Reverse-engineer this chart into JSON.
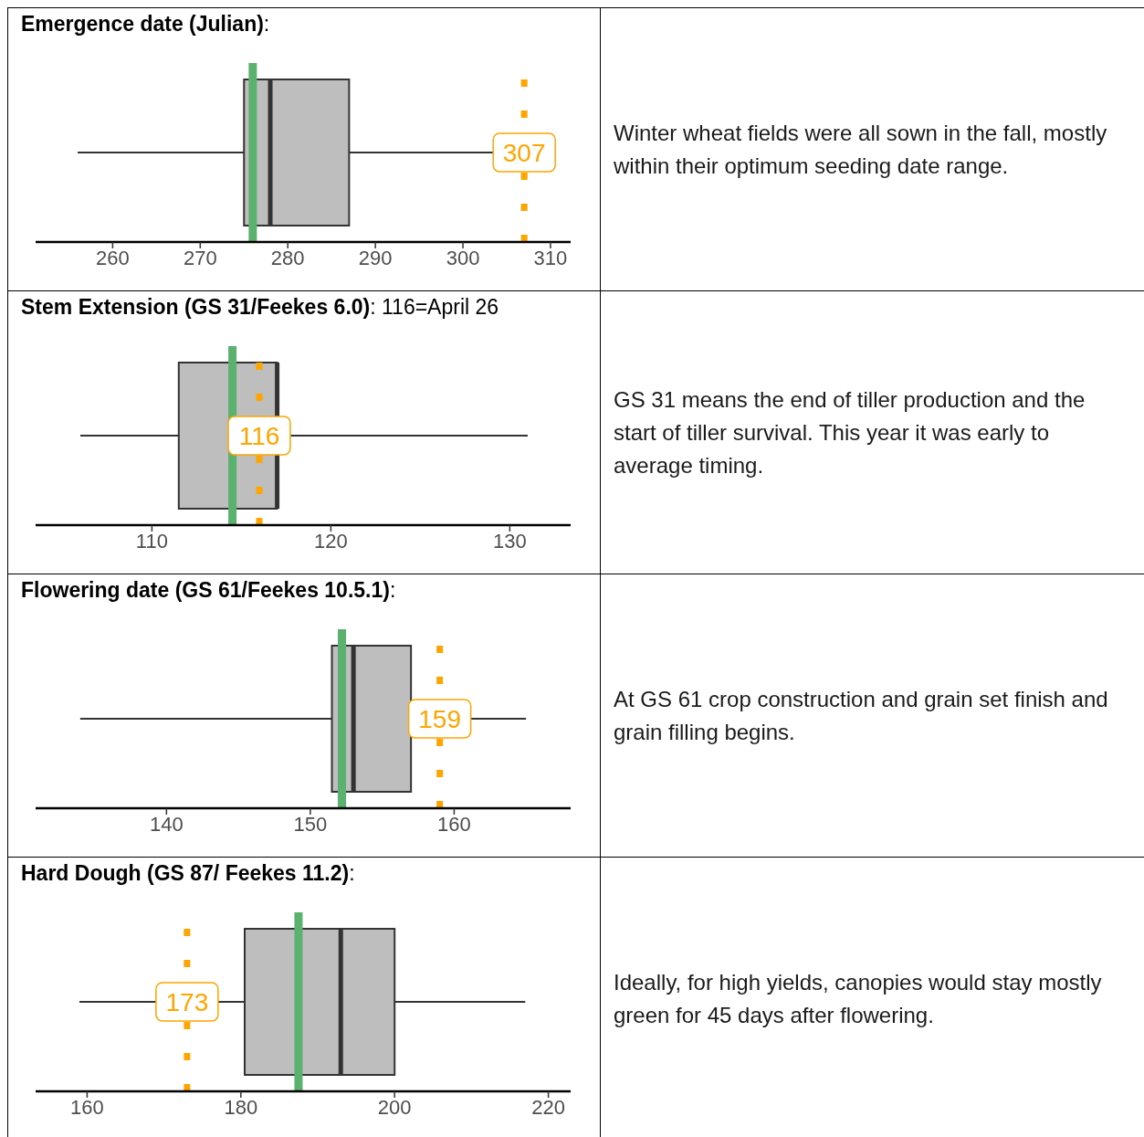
{
  "chart_data": [
    {
      "type": "box",
      "title": "Emergence date (Julian)",
      "subtitle": ":",
      "orientation": "horizontal",
      "categories": [
        null
      ],
      "color": "#bebebe",
      "tick_labels": "x",
      "boxes": [
        {
          "low": 256,
          "q1": 275,
          "median": 278,
          "q3": 287,
          "high": 306
        }
      ],
      "xlim": [
        251.2,
        312.3
      ],
      "xticks": [
        260,
        270,
        280,
        290,
        300,
        310
      ],
      "ref_lines": [
        {
          "axis": "x",
          "value": 276,
          "color": "#5bb26f",
          "line_style": "solid"
        },
        {
          "axis": "x",
          "value": 307,
          "label": "307",
          "color": "#ffa500",
          "line_style": "dotted"
        }
      ]
    },
    {
      "type": "other",
      "annotations": [
        "Winter wheat fields were all sown in the fall, mostly within their optimum seeding date range."
      ]
    },
    {
      "type": "box",
      "title": "Stem Extension (GS 31/Feekes 6.0)",
      "subtitle": ": 116=April 26",
      "orientation": "horizontal",
      "categories": [
        null
      ],
      "color": "#bebebe",
      "tick_labels": "x",
      "boxes": [
        {
          "low": 106,
          "q1": 111.5,
          "median": 117,
          "q3": 117,
          "high": 131
        }
      ],
      "xlim": [
        103.5,
        133.4
      ],
      "xticks": [
        110,
        120,
        130
      ],
      "ref_lines": [
        {
          "axis": "x",
          "value": 114.5,
          "color": "#5bb26f",
          "line_style": "solid"
        },
        {
          "axis": "x",
          "value": 116,
          "label": "116",
          "color": "#ffa500",
          "line_style": "dotted"
        }
      ]
    },
    {
      "type": "other",
      "annotations": [
        "GS 31 means the end of tiller production and the start of tiller survival. This year it was early to average timing."
      ]
    },
    {
      "type": "box",
      "title": "Flowering date (GS 61/Feekes 10.5.1)",
      "subtitle": ":",
      "orientation": "horizontal",
      "categories": [
        null
      ],
      "color": "#bebebe",
      "tick_labels": "x",
      "boxes": [
        {
          "low": 134,
          "q1": 151.5,
          "median": 153,
          "q3": 157,
          "high": 165
        }
      ],
      "xlim": [
        130.9,
        168.1
      ],
      "xticks": [
        140,
        150,
        160
      ],
      "ref_lines": [
        {
          "axis": "x",
          "value": 152.2,
          "color": "#5bb26f",
          "line_style": "solid"
        },
        {
          "axis": "x",
          "value": 159,
          "label": "159",
          "color": "#ffa500",
          "line_style": "dotted"
        }
      ]
    },
    {
      "type": "other",
      "annotations": [
        "At GS 61 crop construction and grain set finish and grain filling begins."
      ]
    },
    {
      "type": "box",
      "title": "Hard Dough (GS 87/ Feekes 11.2)",
      "subtitle": ":",
      "orientation": "horizontal",
      "categories": [
        null
      ],
      "color": "#bebebe",
      "tick_labels": "x",
      "boxes": [
        {
          "low": 159,
          "q1": 180.5,
          "median": 193,
          "q3": 200,
          "high": 217
        }
      ],
      "xlim": [
        153.3,
        222.9
      ],
      "xticks": [
        160,
        180,
        200,
        220
      ],
      "ref_lines": [
        {
          "axis": "x",
          "value": 187.5,
          "color": "#5bb26f",
          "line_style": "solid"
        },
        {
          "axis": "x",
          "value": 173,
          "label": "173",
          "color": "#ffa500",
          "line_style": "dotted"
        }
      ]
    },
    {
      "type": "other",
      "annotations": [
        "Ideally, for high yields, canopies would stay mostly green for 45 days after flowering."
      ]
    }
  ]
}
